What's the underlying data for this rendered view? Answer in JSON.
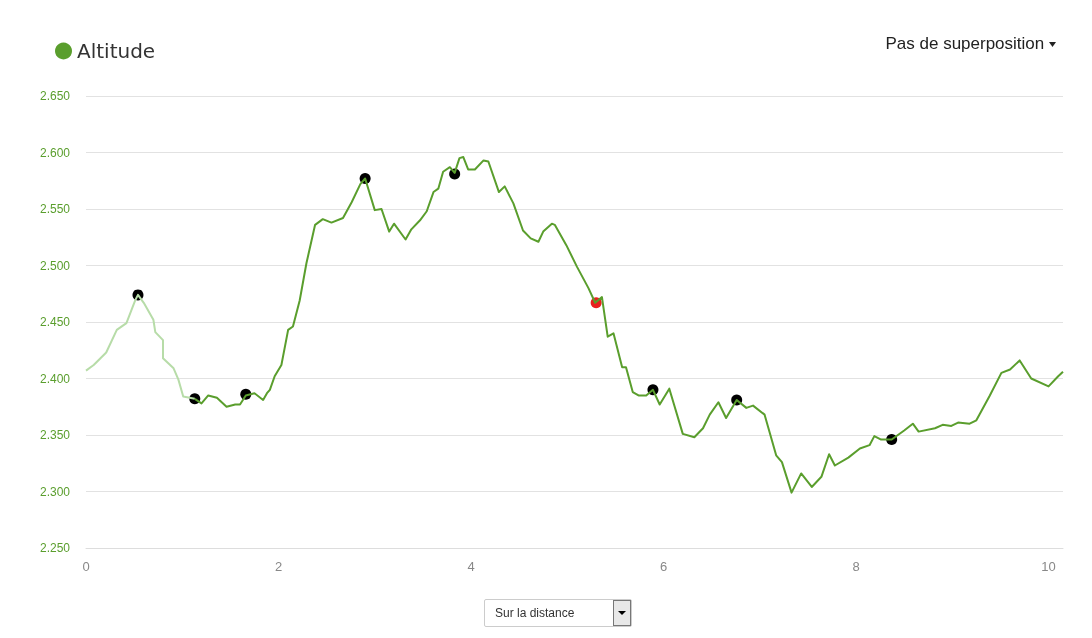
{
  "chart_data": {
    "type": "line",
    "annotations": [
      "Pas de superposition",
      "Sur la distance"
    ],
    "series": [
      {
        "color": "#b7dca8",
        "marker": "none",
        "x": [
          0,
          0.08,
          0.21,
          0.32,
          0.42,
          0.51,
          0.54,
          0.6,
          0.7,
          0.72,
          0.8,
          0.8,
          0.91,
          0.96,
          1.01,
          1.13
        ],
        "values": [
          2407,
          2412,
          2423,
          2443,
          2449,
          2469,
          2474,
          2467,
          2452,
          2441,
          2434,
          2418,
          2409,
          2399,
          2384,
          2382
        ]
      },
      {
        "name": "Altitude",
        "color": "#5a9e2d",
        "marker": "none",
        "x": [
          1.13,
          1.2,
          1.27,
          1.36,
          1.46,
          1.55,
          1.6,
          1.66,
          1.75,
          1.84,
          1.88,
          1.91,
          1.96,
          2.03,
          2.1,
          2.15,
          2.22,
          2.29,
          2.38,
          2.46,
          2.55,
          2.67,
          2.76,
          2.85,
          2.9,
          3.0,
          3.07,
          3.15,
          3.2,
          3.32,
          3.38,
          3.47,
          3.54,
          3.61,
          3.66,
          3.71,
          3.78,
          3.83,
          3.88,
          3.92,
          3.97,
          4.04,
          4.13,
          4.18,
          4.29,
          4.35,
          4.44,
          4.54,
          4.62,
          4.7,
          4.75,
          4.84,
          4.87,
          4.99,
          5.1,
          5.22,
          5.29,
          5.36,
          5.42,
          5.48,
          5.57,
          5.61,
          5.68,
          5.74,
          5.82,
          5.89,
          5.96,
          6.06,
          6.2,
          6.32,
          6.41,
          6.48,
          6.57,
          6.65,
          6.76,
          6.86,
          6.93,
          7.05,
          7.17,
          7.23,
          7.33,
          7.43,
          7.54,
          7.64,
          7.72,
          7.78,
          7.92,
          8.04,
          8.14,
          8.19,
          8.26,
          8.37,
          8.5,
          8.59,
          8.65,
          8.82,
          8.9,
          8.99,
          9.06,
          9.18,
          9.25,
          9.39,
          9.51,
          9.6,
          9.7,
          9.82,
          10.0,
          10.1,
          10.15
        ],
        "values": [
          2382,
          2378,
          2385,
          2383,
          2375,
          2377,
          2377,
          2385,
          2387,
          2381,
          2387,
          2390,
          2402,
          2412,
          2443,
          2446,
          2469,
          2502,
          2536,
          2541,
          2538,
          2542,
          2556,
          2572,
          2577,
          2549,
          2550,
          2530,
          2537,
          2523,
          2532,
          2540,
          2548,
          2565,
          2568,
          2583,
          2587,
          2582,
          2595,
          2596,
          2585,
          2585,
          2593,
          2592,
          2565,
          2570,
          2555,
          2531,
          2524,
          2521,
          2530,
          2537,
          2536,
          2518,
          2499,
          2480,
          2467,
          2472,
          2437,
          2440,
          2410,
          2410,
          2388,
          2385,
          2385,
          2390,
          2377,
          2391,
          2351,
          2348,
          2356,
          2368,
          2379,
          2365,
          2381,
          2374,
          2376,
          2368,
          2332,
          2326,
          2299,
          2316,
          2304,
          2313,
          2333,
          2323,
          2330,
          2338,
          2341,
          2349,
          2346,
          2346,
          2354,
          2360,
          2353,
          2356,
          2359,
          2358,
          2361,
          2360,
          2363,
          2385,
          2405,
          2408,
          2416,
          2400,
          2393,
          2402,
          2406
        ]
      },
      {
        "type": "scatter",
        "color": "#000000",
        "marker": "circle",
        "x": [
          0.54,
          1.13,
          1.66,
          2.9,
          3.83,
          5.89,
          6.76,
          8.37
        ],
        "values": [
          2474,
          2382,
          2386,
          2577,
          2581,
          2390,
          2381,
          2346
        ]
      },
      {
        "type": "scatter",
        "color": "#e8201e",
        "marker": "circle",
        "x": [
          5.3
        ],
        "values": [
          2467
        ]
      }
    ],
    "xlim": [
      0,
      10.15
    ],
    "xticks": [
      0,
      2,
      4,
      6,
      8,
      10
    ],
    "ylim": [
      2250,
      2650
    ],
    "yticks": [
      {
        "value": 2250,
        "label": "2.250"
      },
      {
        "value": 2300,
        "label": "2.300"
      },
      {
        "value": 2350,
        "label": "2.350"
      },
      {
        "value": 2400,
        "label": "2.400"
      },
      {
        "value": 2450,
        "label": "2.450"
      },
      {
        "value": 2500,
        "label": "2.500"
      },
      {
        "value": 2550,
        "label": "2.550"
      },
      {
        "value": 2600,
        "label": "2.600"
      },
      {
        "value": 2650,
        "label": "2.650"
      }
    ],
    "grid": "y",
    "legend": "top left"
  }
}
